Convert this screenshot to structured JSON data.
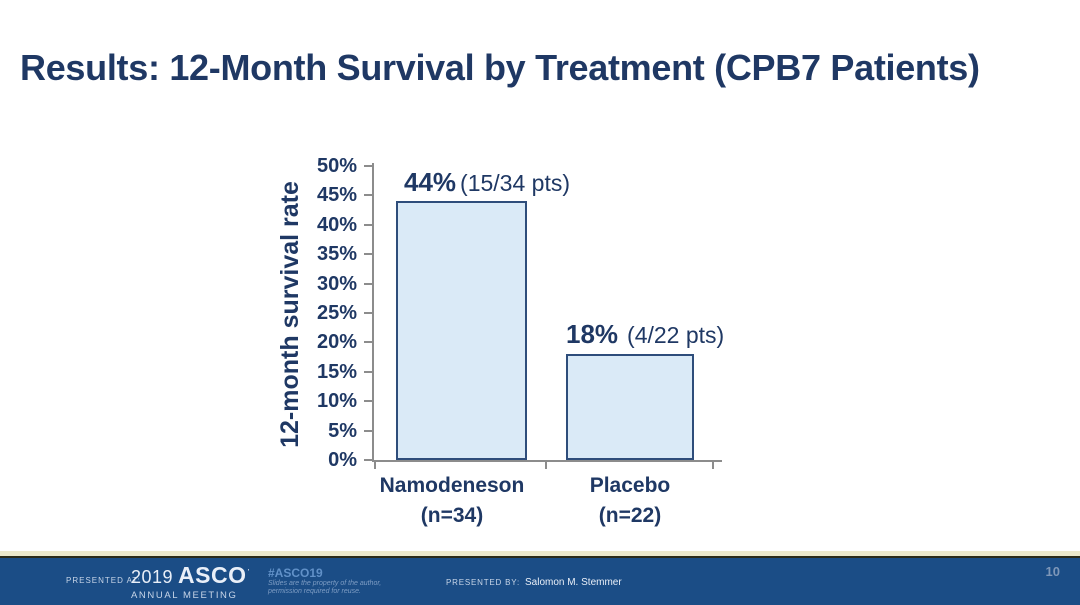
{
  "slide": {
    "title": "Results: 12-Month Survival by Treatment (CPB7 Patients)"
  },
  "chart_data": {
    "type": "bar",
    "title": "",
    "xlabel": "",
    "ylabel": "12-month survival rate",
    "ylim": [
      0,
      50
    ],
    "ytick_step": 5,
    "ytick_suffix": "%",
    "grid": false,
    "legend": false,
    "categories": [
      "Namodeneson",
      "Placebo"
    ],
    "category_sublabels": [
      "(n=34)",
      "(n=22)"
    ],
    "values": [
      44,
      18
    ],
    "bar_labels": [
      {
        "value": "44%",
        "detail": "(15/34 pts)"
      },
      {
        "value": "18%",
        "detail": "(4/22 pts)"
      }
    ],
    "bar_fill": "#daeaf7",
    "bar_border": "#2e4d7b",
    "axis_color": "#8c8c8c"
  },
  "footer": {
    "presented_at_label": "PRESENTED AT:",
    "logo_year": "2019",
    "logo_name": "ASCO",
    "logo_trademark": "’",
    "logo_sub": "ANNUAL MEETING",
    "hashtag": "#ASCO19",
    "disclaimer_line1": "Slides are the property of the author,",
    "disclaimer_line2": "permission required for reuse.",
    "presented_by_label": "PRESENTED BY:",
    "presenter": "Salomon M. Stemmer",
    "page_number": "10"
  },
  "colors": {
    "title_text": "#1f3864",
    "footer_bg": "#1b4d86",
    "accent_cream": "#ece9cc",
    "accent_dark": "#2b2b1a",
    "footer_text_light": "#c7d5e8",
    "footer_text_bright": "#e9eff8",
    "footer_hashtag": "#6191c8",
    "footer_muted": "#7e9dc4",
    "page_number": "#7e97b8",
    "axis_color": "#8c8c8c"
  }
}
